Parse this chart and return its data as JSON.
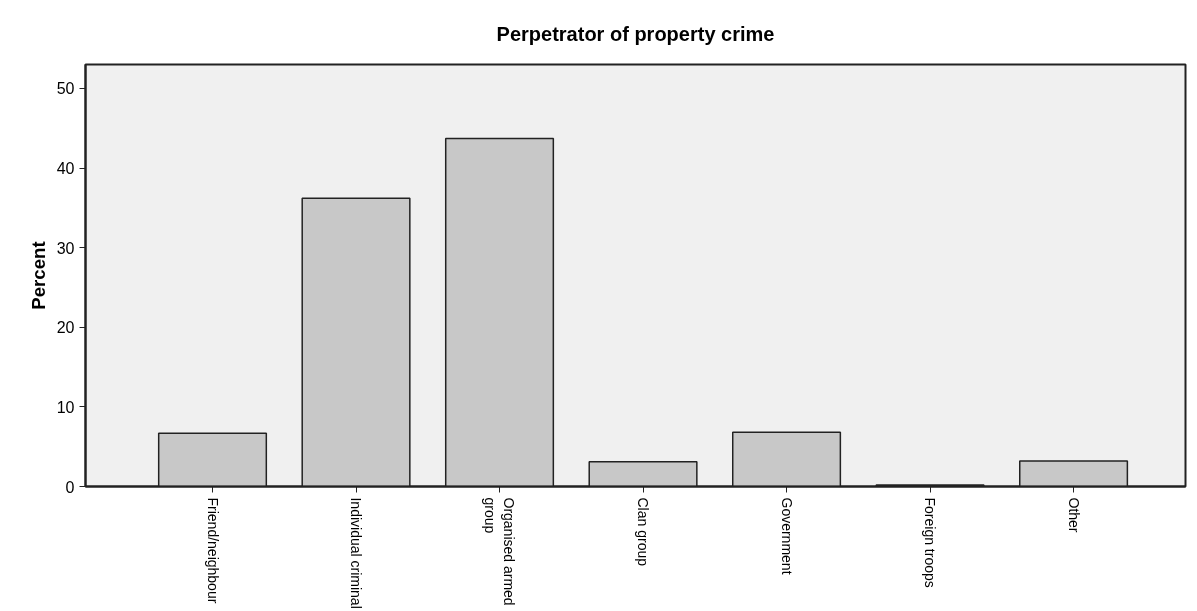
{
  "chart_data": {
    "type": "bar",
    "title": "Perpetrator of property crime",
    "ylabel": "Percent",
    "categories": [
      "Friend/neighbour",
      "Individual criminal",
      "Organised armed group",
      "Clan group",
      "Government",
      "Foreign troops",
      "Other"
    ],
    "values": [
      6.7,
      36.2,
      43.7,
      3.1,
      6.8,
      0.2,
      3.2
    ],
    "color": "#c8c8c8",
    "ylim": [
      0,
      53
    ],
    "yticks": [
      0,
      10,
      20,
      30,
      40,
      50
    ],
    "grid": false
  }
}
